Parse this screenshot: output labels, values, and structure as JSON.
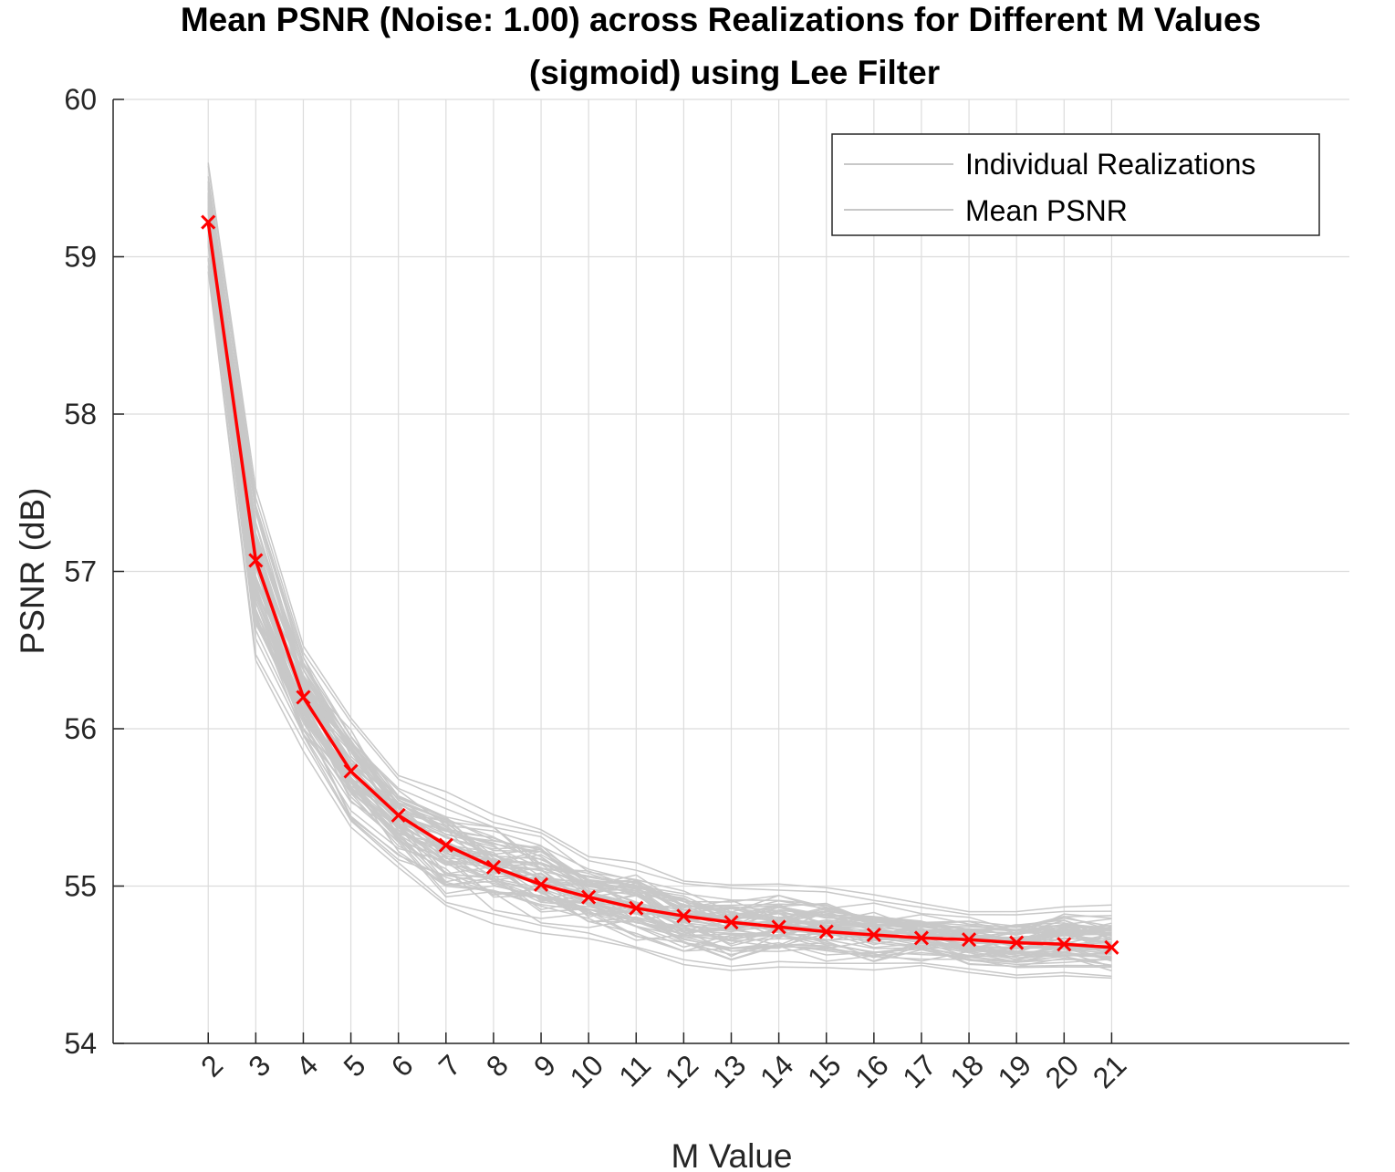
{
  "chart_data": {
    "type": "line",
    "title": "Mean PSNR (Noise: 1.00) across Realizations for Different M Values",
    "subtitle": "(sigmoid) using Lee Filter",
    "xlabel": "M Value",
    "ylabel": "PSNR (dB)",
    "x": [
      2,
      3,
      4,
      5,
      6,
      7,
      8,
      9,
      10,
      11,
      12,
      13,
      14,
      15,
      16,
      17,
      18,
      19,
      20,
      21
    ],
    "x_tick_labels": [
      "2",
      "3",
      "4",
      "5",
      "6",
      "7",
      "8",
      "9",
      "10",
      "11",
      "12",
      "13",
      "14",
      "15",
      "16",
      "17",
      "18",
      "19",
      "20",
      "21"
    ],
    "xlim": [
      0,
      26
    ],
    "ylim": [
      54,
      60
    ],
    "y_ticks": [
      54,
      55,
      56,
      57,
      58,
      59,
      60
    ],
    "y_tick_labels": [
      "54",
      "55",
      "56",
      "57",
      "58",
      "59",
      "60"
    ],
    "grid": true,
    "legend": {
      "placement": "top-right",
      "entries": [
        "Individual Realizations",
        "Mean PSNR"
      ]
    },
    "series": [
      {
        "name": "Individual Realizations",
        "color": "#c8c8c8",
        "band_low": [
          58.9,
          56.4,
          55.85,
          55.35,
          55.1,
          54.85,
          54.75,
          54.68,
          54.65,
          54.58,
          54.5,
          54.44,
          54.47,
          54.46,
          54.46,
          54.48,
          54.45,
          54.41,
          54.41,
          54.4
        ],
        "band_high": [
          59.62,
          57.55,
          56.55,
          56.1,
          55.72,
          55.6,
          55.48,
          55.38,
          55.2,
          55.16,
          55.05,
          55.02,
          55.02,
          55.0,
          54.95,
          54.9,
          54.85,
          54.85,
          54.88,
          54.88
        ]
      },
      {
        "name": "Mean PSNR",
        "color": "#ff0000",
        "marker": "x",
        "values": [
          59.22,
          57.07,
          56.2,
          55.73,
          55.45,
          55.26,
          55.12,
          55.01,
          54.93,
          54.86,
          54.81,
          54.77,
          54.74,
          54.71,
          54.69,
          54.67,
          54.66,
          54.64,
          54.63,
          54.61
        ]
      }
    ]
  }
}
